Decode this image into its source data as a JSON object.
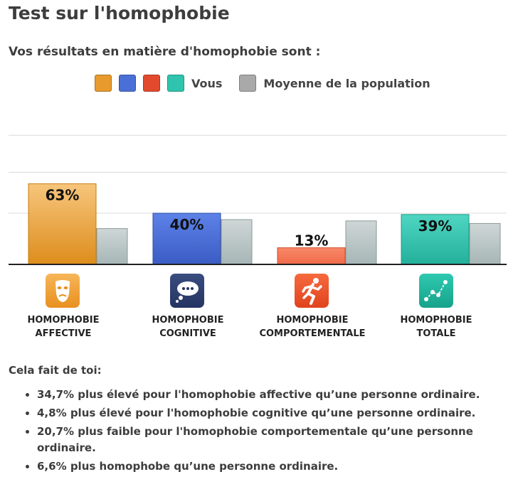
{
  "page": {
    "title": "Test sur l'homophobie",
    "subtitle": "Vos résultats en matière d'homophobie sont :"
  },
  "legend": {
    "you_label": "Vous",
    "average_label": "Moyenne de la population",
    "you_colors": [
      "#e89a2c",
      "#4a6fd6",
      "#e24a2e",
      "#2ec4ad"
    ],
    "average_color": "#a9a9a9"
  },
  "chart_data": {
    "type": "bar",
    "categories": [
      "HOMOPHOBIE AFFECTIVE",
      "HOMOPHOBIE COGNITIVE",
      "HOMOPHOBIE COMPORTEMENTALE",
      "HOMOPHOBIE TOTALE"
    ],
    "category_lines": [
      [
        "HOMOPHOBIE",
        "AFFECTIVE"
      ],
      [
        "HOMOPHOBIE",
        "COGNITIVE"
      ],
      [
        "HOMOPHOBIE",
        "COMPORTEMENTALE"
      ],
      [
        "HOMOPHOBIE",
        "TOTALE"
      ]
    ],
    "icons": [
      "theater-mask-icon",
      "thought-bubble-icon",
      "running-person-icon",
      "line-graph-icon"
    ],
    "series": [
      {
        "name": "Vous",
        "values": [
          63,
          40,
          13,
          39
        ],
        "labels": [
          "63%",
          "40%",
          "13%",
          "39%"
        ],
        "colors": [
          "#e89a2c",
          "#4a6fd6",
          "#f37a5a",
          "#2ec4ad"
        ]
      },
      {
        "name": "Moyenne de la population",
        "values": [
          28,
          35,
          34,
          32
        ],
        "color": "#a9b8b8"
      }
    ],
    "ylim": [
      0,
      100
    ],
    "grid": true
  },
  "results": {
    "title": "Cela fait de toi:",
    "items": [
      "34,7% plus élevé pour l'homophobie affective qu’une personne ordinaire.",
      "4,8% plus élevé pour l'homophobie cognitive qu’une personne ordinaire.",
      "20,7% plus faible pour l'homophobie comportementale qu’une personne ordinaire.",
      "6,6% plus homophobe qu’une personne ordinaire."
    ]
  }
}
